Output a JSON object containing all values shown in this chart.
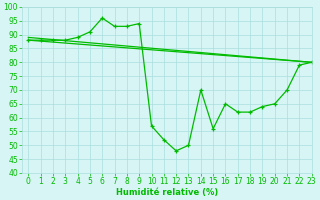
{
  "x": [
    0,
    1,
    2,
    3,
    4,
    5,
    6,
    7,
    8,
    9,
    10,
    11,
    12,
    13,
    14,
    15,
    16,
    17,
    18,
    19,
    20,
    21,
    22,
    23
  ],
  "main_series": [
    88,
    88,
    88,
    88,
    89,
    91,
    96,
    93,
    93,
    94,
    57,
    52,
    48,
    50,
    70,
    56,
    65,
    62,
    62,
    64,
    65,
    70,
    79,
    80
  ],
  "trend1_x": [
    0,
    23
  ],
  "trend1_y": [
    89,
    80
  ],
  "trend2_x": [
    0,
    23
  ],
  "trend2_y": [
    88,
    80
  ],
  "line_color": "#00bb00",
  "bg_color": "#d8f5f5",
  "grid_color": "#aadddd",
  "xlabel": "Humidité relative (%)",
  "ylim": [
    40,
    100
  ],
  "xlim": [
    -0.5,
    23
  ],
  "yticks": [
    40,
    45,
    50,
    55,
    60,
    65,
    70,
    75,
    80,
    85,
    90,
    95,
    100
  ],
  "xticks": [
    0,
    1,
    2,
    3,
    4,
    5,
    6,
    7,
    8,
    9,
    10,
    11,
    12,
    13,
    14,
    15,
    16,
    17,
    18,
    19,
    20,
    21,
    22,
    23
  ]
}
